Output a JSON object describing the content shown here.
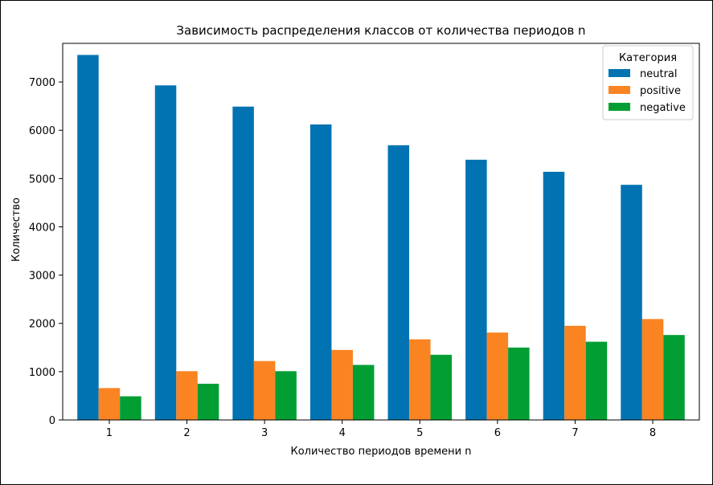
{
  "chart_data": {
    "type": "bar",
    "title": "Зависимость распределения классов от количества периодов n",
    "xlabel": "Количество периодов времени n",
    "ylabel": "Количество",
    "categories": [
      "1",
      "2",
      "3",
      "4",
      "5",
      "6",
      "7",
      "8"
    ],
    "series": [
      {
        "name": "neutral",
        "color": "#0173b2",
        "values": [
          7560,
          6930,
          6490,
          6120,
          5690,
          5390,
          5140,
          4870
        ]
      },
      {
        "name": "positive",
        "color": "#fa8322",
        "values": [
          660,
          1010,
          1220,
          1450,
          1670,
          1810,
          1950,
          2090
        ]
      },
      {
        "name": "negative",
        "color": "#029e33",
        "values": [
          490,
          750,
          1010,
          1140,
          1350,
          1500,
          1620,
          1760
        ]
      }
    ],
    "ylim": [
      0,
      7800
    ],
    "yticks": [
      0,
      1000,
      2000,
      3000,
      4000,
      5000,
      6000,
      7000
    ],
    "legend": {
      "title": "Категория",
      "position": "top-right"
    },
    "grid": false
  }
}
